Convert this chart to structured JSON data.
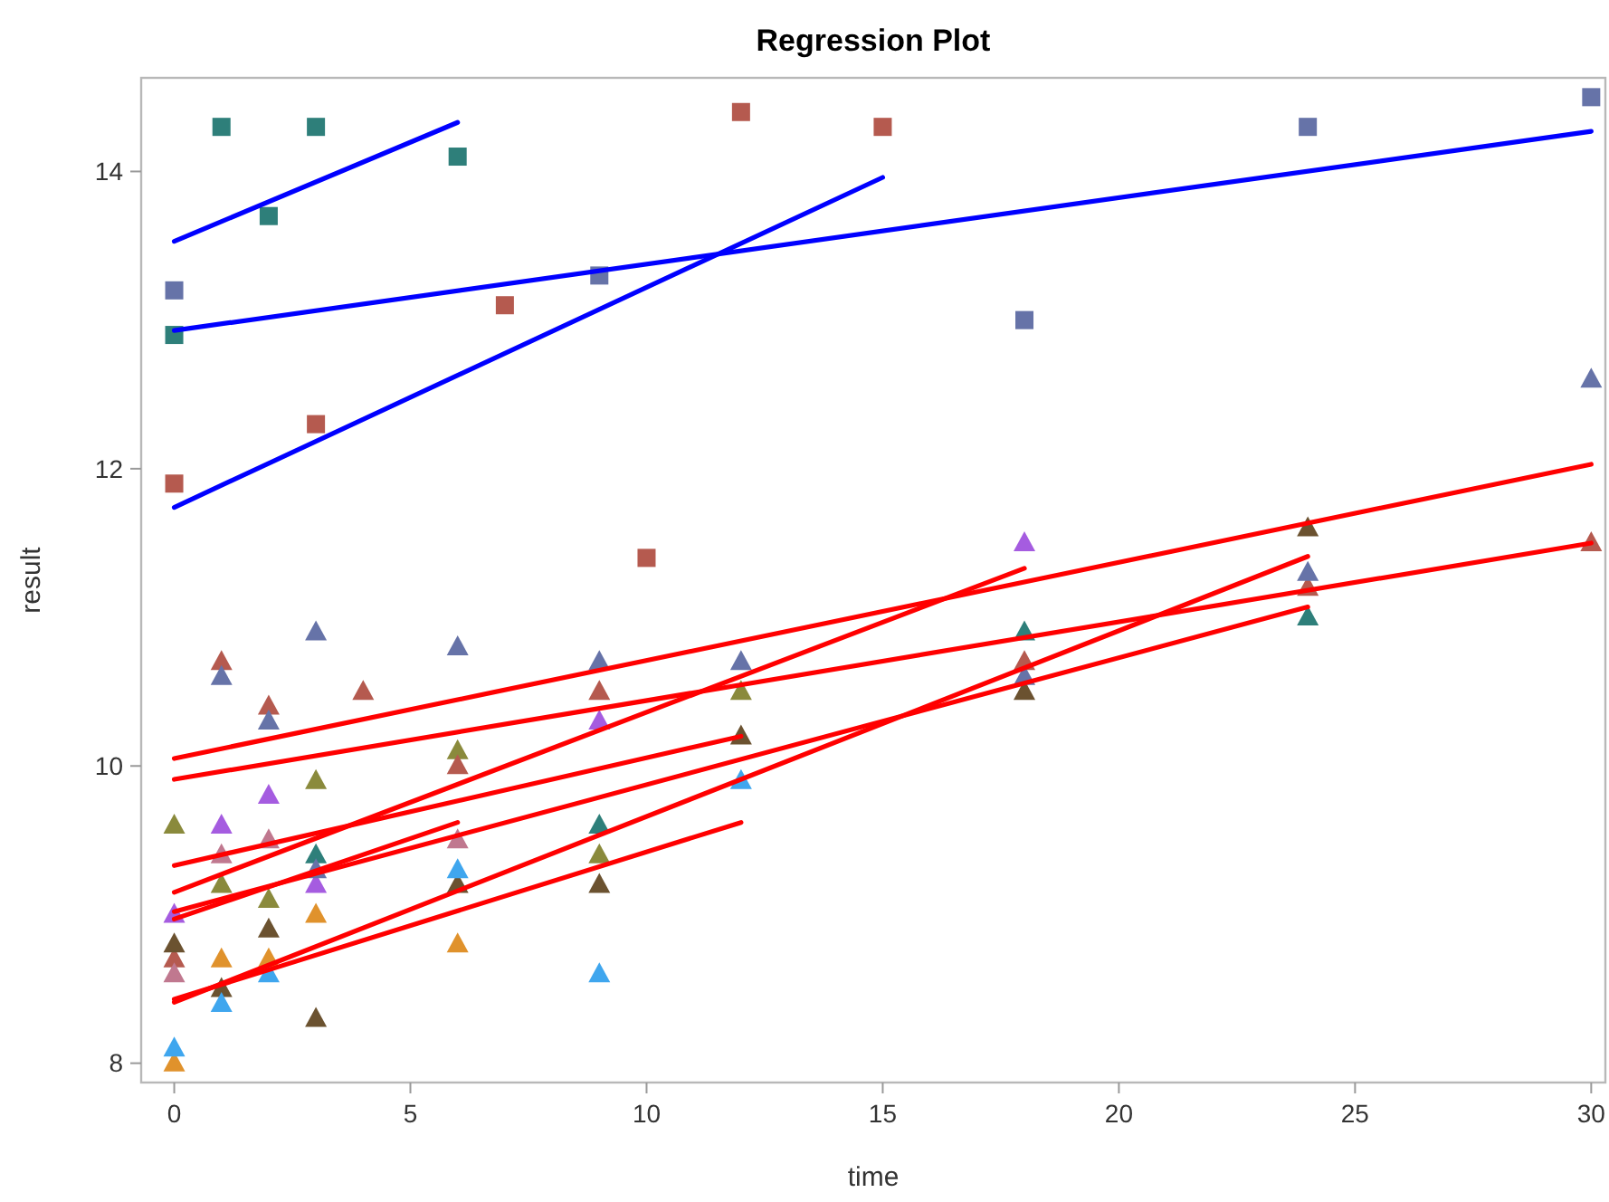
{
  "chart_data": {
    "type": "scatter",
    "title": "Regression Plot",
    "xlabel": "time",
    "ylabel": "result",
    "xlim": [
      -0.7,
      30.3
    ],
    "ylim": [
      7.87,
      14.63
    ],
    "xticks": [
      0,
      5,
      10,
      15,
      20,
      25,
      30
    ],
    "yticks": [
      8,
      10,
      12,
      14
    ],
    "grid": false,
    "series": [
      {
        "color": "#2e7f7a",
        "marker": "square",
        "x": [
          0,
          1,
          2,
          3,
          6
        ],
        "values": [
          12.9,
          14.3,
          13.7,
          14.3,
          14.1
        ]
      },
      {
        "color": "#6673a8",
        "marker": "square",
        "x": [
          0,
          9,
          18,
          24,
          30
        ],
        "values": [
          13.2,
          13.3,
          13.0,
          14.3,
          14.5
        ]
      },
      {
        "color": "#b55a4f",
        "marker": "square",
        "x": [
          0,
          3,
          7,
          10,
          12,
          15
        ],
        "values": [
          11.9,
          12.3,
          13.1,
          11.4,
          14.4,
          14.3
        ]
      },
      {
        "color": "#8a8a3c",
        "marker": "triangle",
        "x": [
          0,
          1,
          2,
          3,
          6,
          9,
          12
        ],
        "values": [
          9.6,
          9.2,
          9.1,
          9.9,
          10.1,
          9.4,
          10.5
        ]
      },
      {
        "color": "#b55a4f",
        "marker": "triangle",
        "x": [
          0,
          1,
          2,
          4,
          6,
          9,
          18,
          24,
          30
        ],
        "values": [
          8.7,
          10.7,
          10.4,
          10.5,
          10.0,
          10.5,
          10.7,
          11.2,
          11.5
        ]
      },
      {
        "color": "#a55ce0",
        "marker": "triangle",
        "x": [
          0,
          1,
          2,
          3,
          9,
          18
        ],
        "values": [
          9.0,
          9.6,
          9.8,
          9.2,
          10.3,
          11.5
        ]
      },
      {
        "color": "#c0788f",
        "marker": "triangle",
        "x": [
          0,
          1,
          2,
          6
        ],
        "values": [
          8.6,
          9.4,
          9.5,
          9.5
        ]
      },
      {
        "color": "#2e7f7a",
        "marker": "triangle",
        "x": [
          3,
          9,
          18,
          24
        ],
        "values": [
          9.4,
          9.6,
          10.9,
          11.0
        ]
      },
      {
        "color": "#6b5230",
        "marker": "triangle",
        "x": [
          0,
          1,
          2,
          3,
          6,
          9,
          12,
          18,
          24
        ],
        "values": [
          8.8,
          8.5,
          8.9,
          8.3,
          9.2,
          9.2,
          10.2,
          10.5,
          11.6
        ]
      },
      {
        "color": "#e0922c",
        "marker": "triangle",
        "x": [
          0,
          1,
          2,
          3,
          6
        ],
        "values": [
          8.0,
          8.7,
          8.7,
          9.0,
          8.8
        ]
      },
      {
        "color": "#3fa6ee",
        "marker": "triangle",
        "x": [
          0,
          1,
          2,
          6,
          9,
          12
        ],
        "values": [
          8.1,
          8.4,
          8.6,
          9.3,
          8.6,
          9.9
        ]
      },
      {
        "color": "#6673a8",
        "marker": "triangle",
        "x": [
          1,
          2,
          3,
          3,
          6,
          9,
          12,
          18,
          24,
          30
        ],
        "values": [
          10.6,
          10.3,
          10.9,
          9.3,
          10.8,
          10.7,
          10.7,
          10.6,
          11.3,
          12.6
        ]
      },
      {
        "type": "line",
        "color": "#0000ff",
        "marker": "none",
        "x": [
          0,
          6
        ],
        "values": [
          13.53,
          14.33
        ]
      },
      {
        "type": "line",
        "color": "#0000ff",
        "marker": "none",
        "x": [
          0,
          30
        ],
        "values": [
          12.93,
          14.27
        ]
      },
      {
        "type": "line",
        "color": "#0000ff",
        "marker": "none",
        "x": [
          0,
          15
        ],
        "values": [
          11.74,
          13.96
        ]
      },
      {
        "type": "line",
        "color": "#ff0000",
        "marker": "none",
        "x": [
          0,
          30
        ],
        "values": [
          10.05,
          12.03
        ]
      },
      {
        "type": "line",
        "color": "#ff0000",
        "marker": "none",
        "x": [
          0,
          30
        ],
        "values": [
          9.91,
          11.5
        ]
      },
      {
        "type": "line",
        "color": "#ff0000",
        "marker": "none",
        "x": [
          0,
          12
        ],
        "values": [
          9.33,
          10.2
        ]
      },
      {
        "type": "line",
        "color": "#ff0000",
        "marker": "none",
        "x": [
          0,
          18
        ],
        "values": [
          9.15,
          11.33
        ]
      },
      {
        "type": "line",
        "color": "#ff0000",
        "marker": "none",
        "x": [
          0,
          24
        ],
        "values": [
          9.02,
          11.07
        ]
      },
      {
        "type": "line",
        "color": "#ff0000",
        "marker": "none",
        "x": [
          0,
          6
        ],
        "values": [
          8.97,
          9.62
        ]
      },
      {
        "type": "line",
        "color": "#ff0000",
        "marker": "none",
        "x": [
          0,
          24
        ],
        "values": [
          8.41,
          11.41
        ]
      },
      {
        "type": "line",
        "color": "#ff0000",
        "marker": "none",
        "x": [
          0,
          12
        ],
        "values": [
          8.43,
          9.62
        ]
      }
    ]
  }
}
